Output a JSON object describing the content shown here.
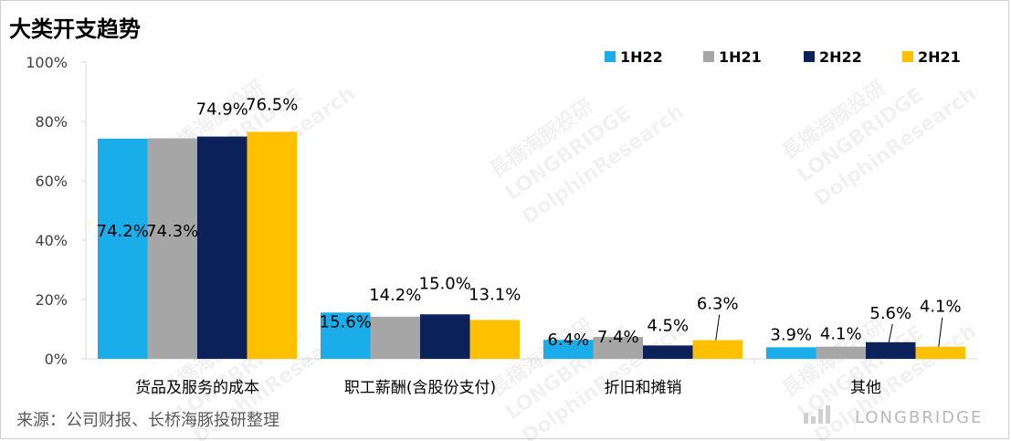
{
  "chart_data": {
    "type": "bar",
    "title": "大类开支趋势",
    "categories": [
      "货品及服务的成本",
      "职工薪酬(含股份支付)",
      "折旧和摊销",
      "其他"
    ],
    "series": [
      {
        "name": "1H22",
        "color": "#1AADEA",
        "values": [
          74.2,
          15.6,
          6.4,
          3.9
        ],
        "labels": [
          "74.2%",
          "15.6%",
          "6.4%",
          "3.9%"
        ]
      },
      {
        "name": "1H21",
        "color": "#A6A6A6",
        "values": [
          74.3,
          14.2,
          7.4,
          4.1
        ],
        "labels": [
          "74.3%",
          "14.2%",
          "7.4%",
          "4.1%"
        ]
      },
      {
        "name": "2H22",
        "color": "#0C2159",
        "values": [
          74.9,
          15.0,
          4.5,
          5.6
        ],
        "labels": [
          "74.9%",
          "15.0%",
          "4.5%",
          "5.6%"
        ]
      },
      {
        "name": "2H21",
        "color": "#FFC000",
        "values": [
          76.5,
          13.1,
          6.3,
          4.1
        ],
        "labels": [
          "76.5%",
          "13.1%",
          "6.3%",
          "4.1%"
        ]
      }
    ],
    "yticks": [
      "0%",
      "20%",
      "40%",
      "60%",
      "80%",
      "100%"
    ],
    "ylim": [
      0,
      100
    ],
    "legend": "top-right",
    "grid": false
  },
  "source": "来源：公司财报、长桥海豚投研整理",
  "watermark": {
    "cn": "長橋海豚投研",
    "en1": "LONGBRIDGE",
    "en2": "DolphinResearch",
    "brand": "LONGBRIDGE"
  }
}
